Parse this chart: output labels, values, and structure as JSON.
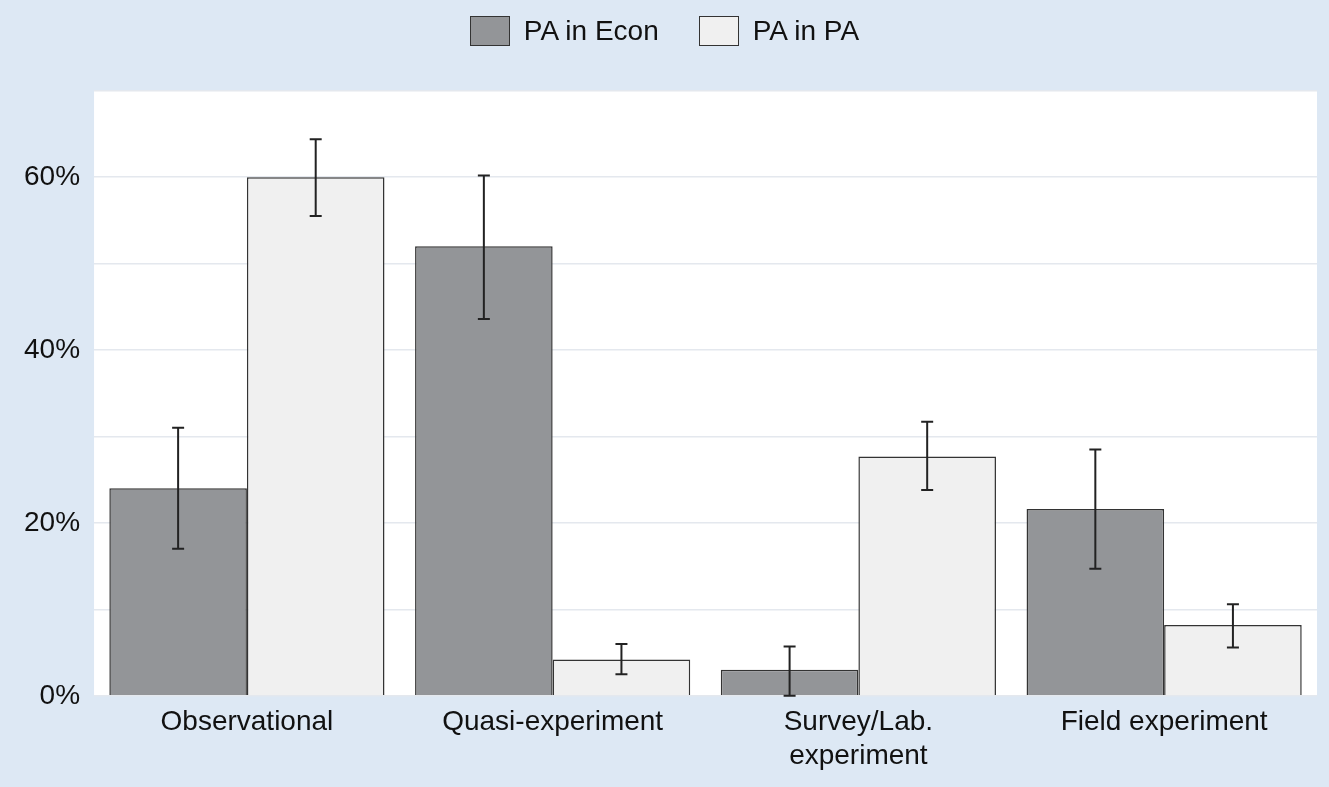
{
  "chart_data": {
    "type": "bar",
    "categories": [
      "Observational",
      "Quasi-experiment",
      "Survey/Lab. experiment",
      "Field experiment"
    ],
    "series": [
      {
        "name": "PA in Econ",
        "color": "#939598",
        "values": [
          24,
          52,
          3,
          21.6
        ],
        "errors": [
          [
            17,
            31
          ],
          [
            43.6,
            60.2
          ],
          [
            0,
            5.7
          ],
          [
            14.7,
            28.5
          ]
        ]
      },
      {
        "name": "PA in PA",
        "color": "#f0f0f0",
        "values": [
          60,
          4.2,
          27.7,
          8.2
        ],
        "errors": [
          [
            55.5,
            64.4
          ],
          [
            2.5,
            6
          ],
          [
            23.8,
            31.7
          ],
          [
            5.6,
            10.6
          ]
        ]
      }
    ],
    "ylim": [
      0,
      70
    ],
    "yticks": [
      {
        "value": 0,
        "label": "0%"
      },
      {
        "value": 10,
        "label": null
      },
      {
        "value": 20,
        "label": "20%"
      },
      {
        "value": 30,
        "label": null
      },
      {
        "value": 40,
        "label": "40%"
      },
      {
        "value": 50,
        "label": null
      },
      {
        "value": 60,
        "label": "60%"
      },
      {
        "value": 70,
        "label": null
      }
    ],
    "grid": true,
    "legend": "top"
  }
}
